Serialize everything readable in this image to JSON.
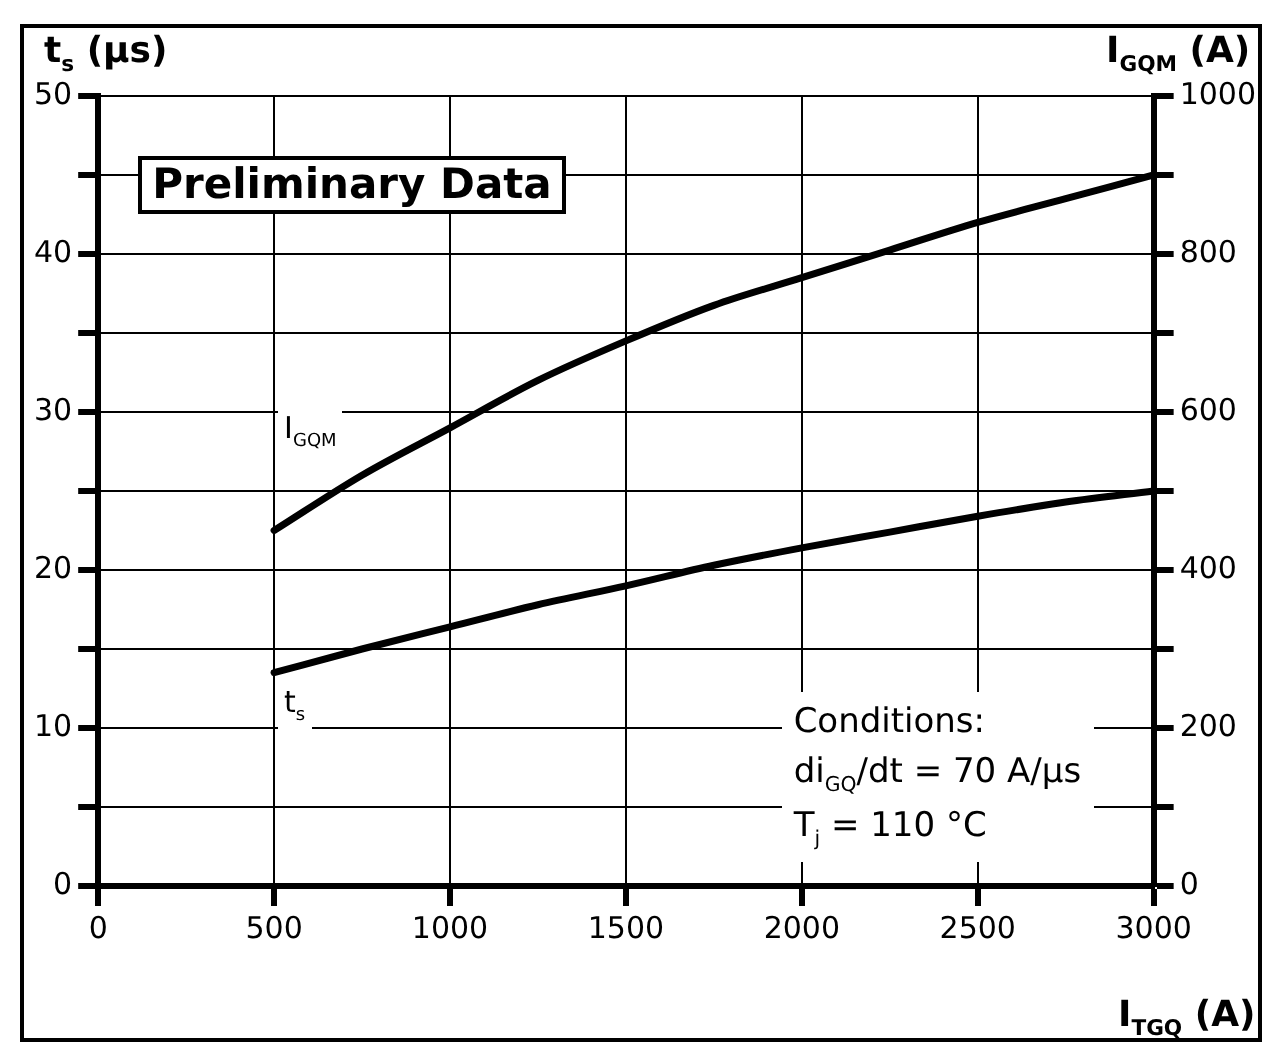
{
  "chart_data": {
    "type": "line",
    "ylabel": "t$_{s}$ (μs)",
    "y2label": "I$_{GQM}$ (A)",
    "xlabel": "I$_{TGQ}$ (A)",
    "annotations": [
      "Preliminary Data",
      "Conditions:",
      "di$_{GQ}$/dt = 70 A/μs",
      "T$_{j}$ = 110 °C"
    ],
    "x": [
      500,
      750,
      1000,
      1250,
      1500,
      1750,
      2000,
      2250,
      2500,
      2750,
      3000
    ],
    "series": [
      {
        "name": "I$_{GQM}$",
        "color": "#000000",
        "axis": "y2",
        "values": [
          450,
          520,
          580,
          640,
          690,
          735,
          770,
          805,
          840,
          870,
          900
        ]
      },
      {
        "name": "t$_{s}$",
        "color": "#000000",
        "values": [
          13.5,
          15,
          16.4,
          17.8,
          19,
          20.3,
          21.4,
          22.4,
          23.4,
          24.3,
          25
        ]
      }
    ],
    "xlim": [
      0,
      3000
    ],
    "xticks": [
      0,
      500,
      1000,
      1500,
      2000,
      2500,
      3000
    ],
    "ylim": [
      0,
      50
    ],
    "yticks": [
      0,
      {
        "value": 5,
        "label": null
      },
      10,
      {
        "value": 15,
        "label": null
      },
      20,
      {
        "value": 25,
        "label": null
      },
      30,
      {
        "value": 35,
        "label": null
      },
      40,
      {
        "value": 45,
        "label": null
      },
      50
    ],
    "y2lim": [
      0,
      1000
    ],
    "y2ticks": [
      0,
      {
        "value": 100,
        "label": null
      },
      200,
      {
        "value": 300,
        "label": null
      },
      400,
      {
        "value": 500,
        "label": null
      },
      600,
      {
        "value": 700,
        "label": null
      },
      800,
      {
        "value": 900,
        "label": null
      },
      1000
    ],
    "grid": true,
    "legend": false,
    "marker": "none",
    "line_style": "solid"
  }
}
